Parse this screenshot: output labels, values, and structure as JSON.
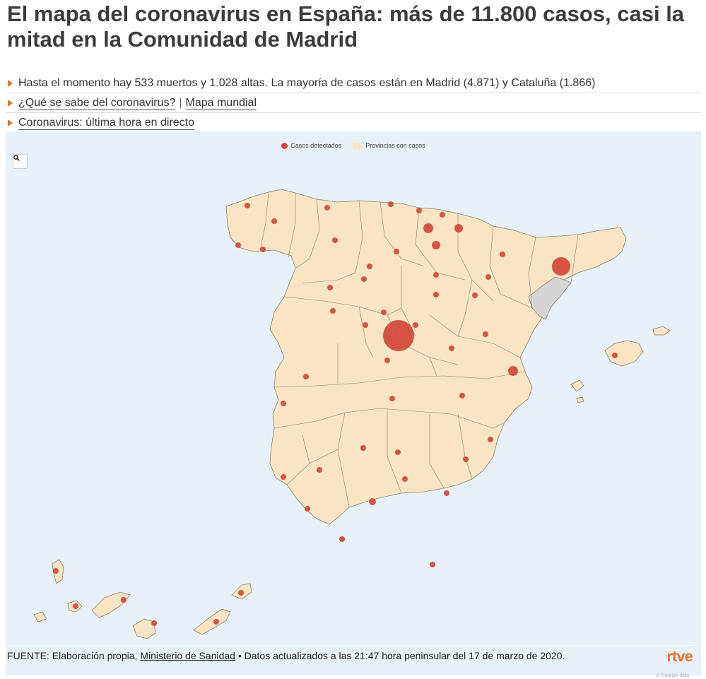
{
  "headline": "El mapa del coronavirus en España: más de 11.800 casos, casi la mitad en la Comunidad de Madrid",
  "bullets": {
    "summary": "Hasta el momento hay 533 muertos y 1.028 altas. La mayoría de casos están en Madrid (4.871) y Cataluña (1.866)",
    "link_que_se_sabe": "¿Qué se sabe del coronavirus?",
    "separator": "|",
    "link_mapa_mundial": "Mapa mundial",
    "link_ultima_hora": "Coronavirus: última hora en directo"
  },
  "map": {
    "legend": {
      "cases": "Casos detectados",
      "provinces": "Provincias con casos"
    },
    "zoom_icon": "search-icon",
    "colors": {
      "sea": "#e8f0f8",
      "land": "#f9e5c4",
      "no_cases": "#d5d5d5",
      "border": "#8a8170",
      "bubble": "#d1473a"
    }
  },
  "footer": {
    "source_prefix": "FUENTE: Elaboración propia,",
    "source_link": "Ministerio de Sanidad",
    "updated": "• Datos actualizados a las 21:47 hora peninsular del 17 de marzo de 2020.",
    "brand": "rtve",
    "credit": "A Flourish data"
  }
}
